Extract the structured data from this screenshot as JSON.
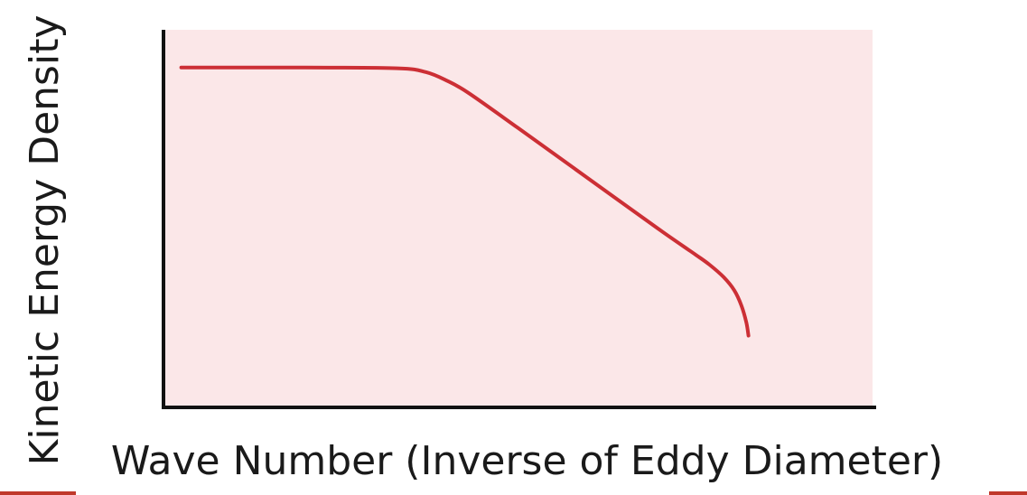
{
  "chart_data": {
    "type": "line",
    "title": "",
    "xlabel": "Wave Number (Inverse of Eddy Diameter)",
    "ylabel": "Kinetic Energy Density",
    "x_ticks": [],
    "y_ticks": [],
    "grid": false,
    "legend": "none",
    "xlim": [
      0,
      100
    ],
    "ylim": [
      0,
      100
    ],
    "colors": {
      "line": "#cc2f35",
      "plot_background": "#fbe7e8",
      "axis": "#111111",
      "accent": "#c0392b"
    },
    "series": [
      {
        "values": [
          {
            "x": 2.5,
            "y": 90
          },
          {
            "x": 20,
            "y": 90
          },
          {
            "x": 33,
            "y": 89.8
          },
          {
            "x": 37,
            "y": 88.8
          },
          {
            "x": 40,
            "y": 86.5
          },
          {
            "x": 43,
            "y": 83.3
          },
          {
            "x": 50,
            "y": 74
          },
          {
            "x": 60,
            "y": 60.5
          },
          {
            "x": 70,
            "y": 47
          },
          {
            "x": 75,
            "y": 40.5
          },
          {
            "x": 77,
            "y": 37.8
          },
          {
            "x": 79,
            "y": 34.5
          },
          {
            "x": 80.5,
            "y": 31
          },
          {
            "x": 81.5,
            "y": 27
          },
          {
            "x": 82.2,
            "y": 22.5
          },
          {
            "x": 82.5,
            "y": 19
          }
        ]
      }
    ]
  }
}
